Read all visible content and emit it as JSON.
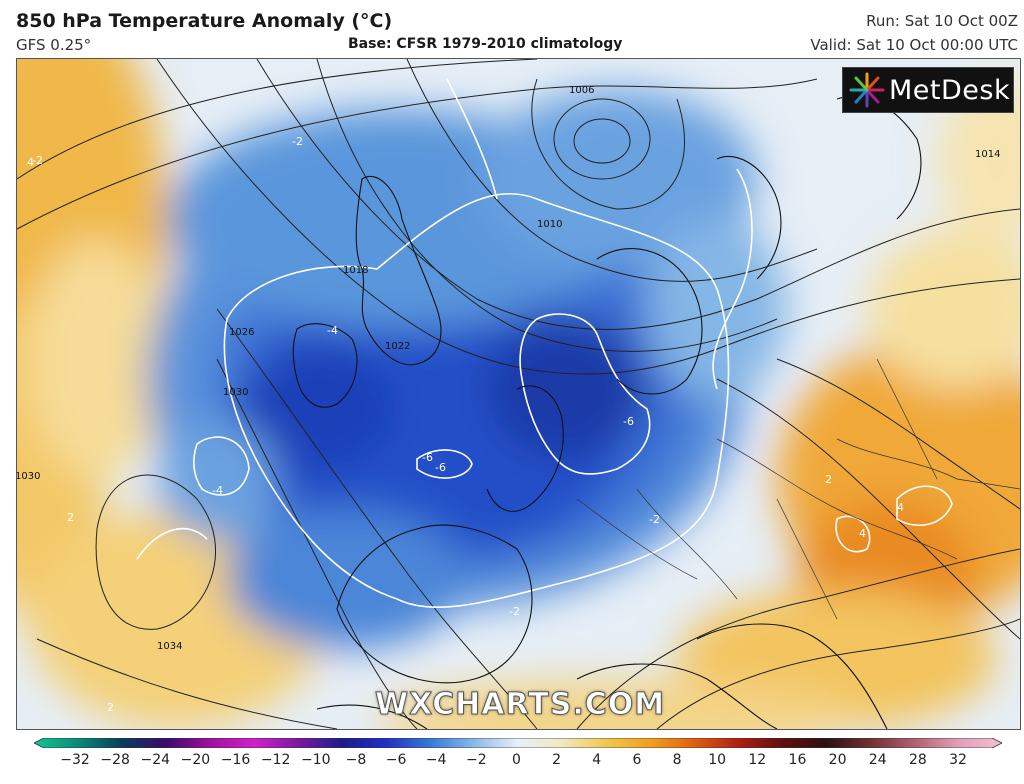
{
  "header": {
    "title": "850 hPa Temperature Anomaly (°C)",
    "model": "GFS 0.25°",
    "base": "Base: CFSR 1979-2010 climatology",
    "run": "Run: Sat 10 Oct 00Z",
    "valid": "Valid: Sat 10 Oct 00:00 UTC"
  },
  "logo": {
    "text": "MetDesk",
    "icon": "metdesk-starburst-icon"
  },
  "watermark": "WXCHARTS.COM",
  "isobar_labels": [
    "1006",
    "1010",
    "1014",
    "1018",
    "1026",
    "1022",
    "1030",
    "1030",
    "1034"
  ],
  "anomaly_labels": [
    "-2",
    "-2",
    "-4",
    "-4",
    "-6",
    "-6",
    "-6",
    "-2",
    "-2",
    "4",
    "4",
    "2",
    "2",
    "2",
    "4"
  ],
  "colorbar": {
    "ticks": [
      "−32",
      "−28",
      "−24",
      "−20",
      "−16",
      "−12",
      "−10",
      "−8",
      "−6",
      "−4",
      "−2",
      "0",
      "2",
      "4",
      "6",
      "8",
      "10",
      "12",
      "16",
      "20",
      "24",
      "28",
      "32"
    ],
    "colors": [
      "#10c890",
      "#0a8a7a",
      "#0a3c5a",
      "#3a0a6a",
      "#a010a0",
      "#d020c8",
      "#7a1aa0",
      "#1c1c8c",
      "#2030c0",
      "#3878d8",
      "#8ab8e8",
      "#e8f0f8",
      "#f0e8c0",
      "#f0c850",
      "#f0a020",
      "#e06010",
      "#b02010",
      "#601010",
      "#301010",
      "#703030",
      "#b06070",
      "#e0a0b8",
      "#f0c0d0"
    ]
  }
}
